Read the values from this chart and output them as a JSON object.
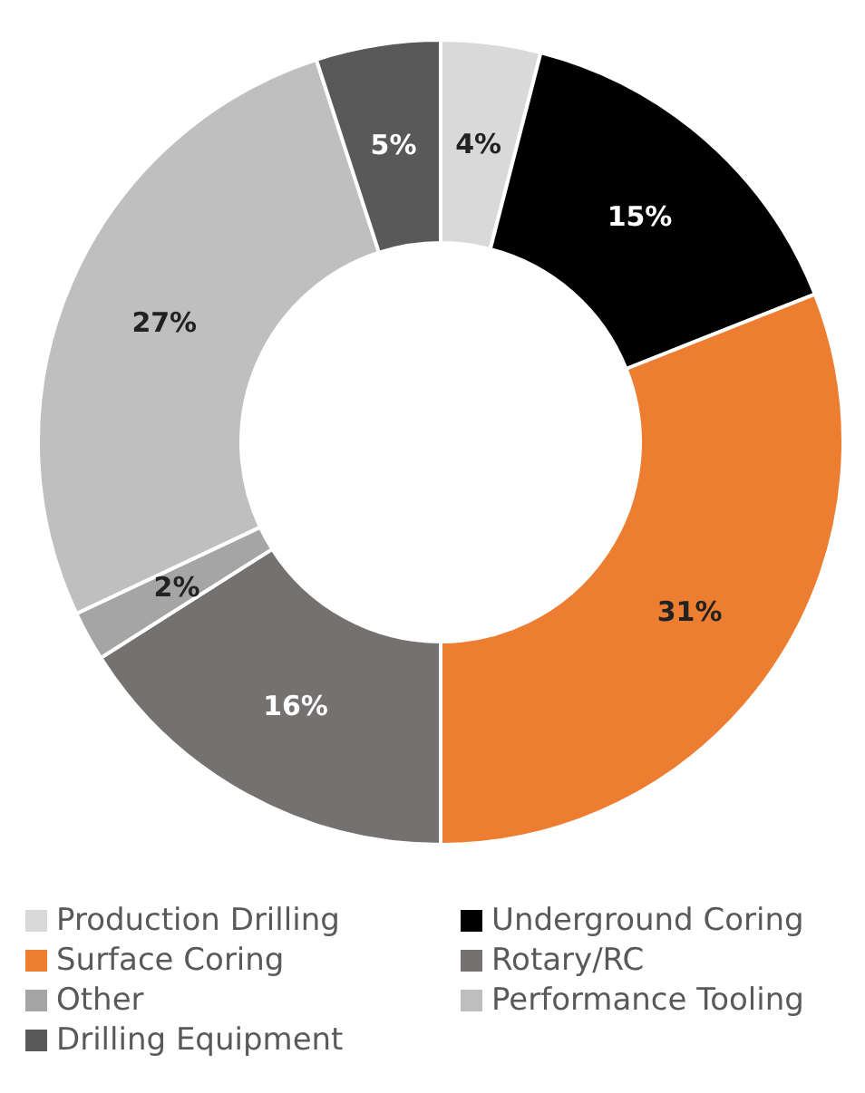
{
  "chart_data": {
    "type": "donut",
    "categories": [
      "Production Drilling",
      "Underground Coring",
      "Surface Coring",
      "Rotary/RC",
      "Other",
      "Performance Tooling",
      "Drilling Equipment"
    ],
    "values": [
      4,
      15,
      31,
      16,
      2,
      27,
      5
    ],
    "colors": [
      "#d9d9d9",
      "#000000",
      "#ed7d31",
      "#767171",
      "#a5a5a5",
      "#bfbfbf",
      "#595959"
    ],
    "value_labels": [
      "4%",
      "15%",
      "31%",
      "16%",
      "2%",
      "27%",
      "5%"
    ],
    "legend": "bottom"
  }
}
